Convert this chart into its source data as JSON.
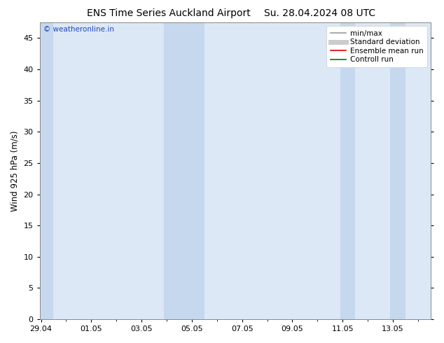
{
  "title_left": "ENS Time Series Auckland Airport",
  "title_right": "Su. 28.04.2024 08 UTC",
  "ylabel": "Wind 925 hPa (m/s)",
  "ylim": [
    0,
    47.5
  ],
  "yticks": [
    0,
    5,
    10,
    15,
    20,
    25,
    30,
    35,
    40,
    45
  ],
  "bg_color": "#ffffff",
  "plot_bg_color": "#dce8f5",
  "band_color": "#c5d8ee",
  "watermark": "© weatheronline.in",
  "watermark_color": "#2244bb",
  "xticklabels": [
    "29.04",
    "01.05",
    "03.05",
    "05.05",
    "07.05",
    "09.05",
    "11.05",
    "13.05"
  ],
  "legend_items": [
    {
      "label": "min/max",
      "color": "#999999",
      "lw": 1.2
    },
    {
      "label": "Standard deviation",
      "color": "#cccccc",
      "lw": 5
    },
    {
      "label": "Ensemble mean run",
      "color": "#dd0000",
      "lw": 1.2
    },
    {
      "label": "Controll run",
      "color": "#007700",
      "lw": 1.2
    }
  ],
  "title_fontsize": 10,
  "ylabel_fontsize": 8.5,
  "tick_fontsize": 8,
  "legend_fontsize": 7.5
}
